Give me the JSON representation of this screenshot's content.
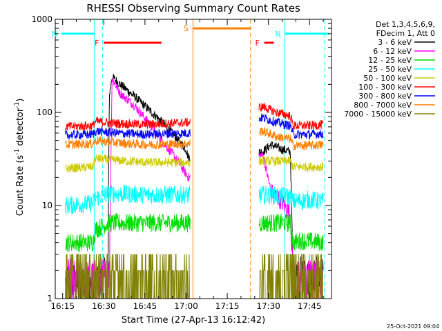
{
  "chart_data": {
    "type": "line",
    "title": "RHESSI Observing Summary Count Rates",
    "xlabel": "Start Time (27-Apr-13 16:12:42)",
    "ylabel_base": "Count Rate (s",
    "ylabel_sup1": "-1",
    "ylabel_mid": " detector",
    "ylabel_sup2": "-1",
    "ylabel_end": ")",
    "y_scale": "log",
    "ylim": [
      1,
      1000
    ],
    "xlim_minutes": [
      -2.7,
      98
    ],
    "x_ticks": [
      {
        "m": 0,
        "label": "16:15"
      },
      {
        "m": 15,
        "label": "16:30"
      },
      {
        "m": 30,
        "label": "16:45"
      },
      {
        "m": 45,
        "label": "17:00"
      },
      {
        "m": 60,
        "label": "17:15"
      },
      {
        "m": 75,
        "label": "17:30"
      },
      {
        "m": 90,
        "label": "17:45"
      }
    ],
    "y_ticks": [
      {
        "v": 1,
        "label": "1"
      },
      {
        "v": 10,
        "label": "10"
      },
      {
        "v": 100,
        "label": "100"
      },
      {
        "v": 1000,
        "label": "1000"
      }
    ],
    "legend_header": [
      "Det 1,3,4,5,6,9,",
      "FDecim 1, Att 0"
    ],
    "timestamp": "25-Oct-2021 09:04",
    "data_gap_minutes": [
      46.5,
      71.5
    ],
    "series": [
      {
        "name": "3 - 6 keV",
        "color": "#000000",
        "points": [
          [
            1,
            1.4
          ],
          [
            11,
            1.4
          ],
          [
            16.5,
            1.6
          ],
          [
            17,
            150
          ],
          [
            18,
            240
          ],
          [
            21,
            200
          ],
          [
            26,
            150
          ],
          [
            31,
            110
          ],
          [
            36,
            80
          ],
          [
            41,
            55
          ],
          [
            45,
            40
          ],
          [
            45.8,
            33
          ],
          [
            73,
            38
          ],
          [
            76,
            45
          ],
          [
            80,
            40
          ],
          [
            83,
            38
          ],
          [
            84,
            1.7
          ],
          [
            88,
            1.6
          ],
          [
            95,
            1.6
          ]
        ]
      },
      {
        "name": "6 - 12 keV",
        "color": "#ff00ff",
        "points": [
          [
            1,
            1.5
          ],
          [
            11,
            1.5
          ],
          [
            17,
            1.7
          ],
          [
            18,
            230
          ],
          [
            21,
            160
          ],
          [
            26,
            120
          ],
          [
            31,
            80
          ],
          [
            36,
            50
          ],
          [
            41,
            33
          ],
          [
            45.8,
            20
          ],
          [
            73,
            35
          ],
          [
            76,
            14
          ],
          [
            80,
            11
          ],
          [
            83,
            8
          ],
          [
            84,
            1.5
          ],
          [
            88,
            1.5
          ],
          [
            95,
            1.5
          ]
        ]
      },
      {
        "name": "12 - 25 keV",
        "color": "#00dd00",
        "points": [
          [
            1,
            4
          ],
          [
            11,
            4
          ],
          [
            12,
            5.5
          ],
          [
            17,
            6.5
          ],
          [
            25,
            6.5
          ],
          [
            35,
            6.5
          ],
          [
            45.8,
            6.5
          ],
          [
            73,
            6.5
          ],
          [
            83,
            6.5
          ],
          [
            84,
            4
          ],
          [
            88,
            4.2
          ],
          [
            95,
            4
          ]
        ]
      },
      {
        "name": "25 - 50 keV",
        "color": "#00ffff",
        "points": [
          [
            1,
            10
          ],
          [
            11,
            10.5
          ],
          [
            12,
            12
          ],
          [
            17,
            13.5
          ],
          [
            30,
            13
          ],
          [
            45.8,
            13
          ],
          [
            73,
            13
          ],
          [
            83,
            12.5
          ],
          [
            84,
            11
          ],
          [
            90,
            11.5
          ],
          [
            95,
            11
          ]
        ]
      },
      {
        "name": "50 - 100 keV",
        "color": "#cccc00",
        "points": [
          [
            1,
            25
          ],
          [
            11,
            26
          ],
          [
            12,
            32
          ],
          [
            17,
            31
          ],
          [
            30,
            29
          ],
          [
            45.8,
            29
          ],
          [
            73,
            30
          ],
          [
            83,
            30
          ],
          [
            84,
            26
          ],
          [
            90,
            26
          ],
          [
            95,
            26
          ]
        ]
      },
      {
        "name": "100 - 300 keV",
        "color": "#ff0000",
        "points": [
          [
            1,
            70
          ],
          [
            11,
            72
          ],
          [
            12,
            80
          ],
          [
            20,
            76
          ],
          [
            30,
            74
          ],
          [
            45.8,
            78
          ],
          [
            73,
            115
          ],
          [
            78,
            100
          ],
          [
            83,
            92
          ],
          [
            84,
            72
          ],
          [
            90,
            72
          ],
          [
            95,
            74
          ]
        ]
      },
      {
        "name": "300 - 800 keV",
        "color": "#0000ff",
        "points": [
          [
            1,
            57
          ],
          [
            11,
            58
          ],
          [
            12,
            63
          ],
          [
            20,
            60
          ],
          [
            30,
            58
          ],
          [
            45.8,
            60
          ],
          [
            73,
            88
          ],
          [
            78,
            78
          ],
          [
            83,
            72
          ],
          [
            84,
            58
          ],
          [
            90,
            58
          ],
          [
            95,
            59
          ]
        ]
      },
      {
        "name": "800 - 7000 keV",
        "color": "#ff7f00",
        "points": [
          [
            1,
            45
          ],
          [
            11,
            46
          ],
          [
            12,
            50
          ],
          [
            20,
            47
          ],
          [
            30,
            45
          ],
          [
            45.8,
            46
          ],
          [
            73,
            63
          ],
          [
            78,
            55
          ],
          [
            83,
            52
          ],
          [
            84,
            44
          ],
          [
            90,
            44
          ],
          [
            95,
            45
          ]
        ]
      },
      {
        "name": "7000 - 15000 keV",
        "color": "#808000",
        "points": [
          [
            1,
            2
          ],
          [
            11,
            2
          ],
          [
            12,
            2
          ],
          [
            45.8,
            2
          ],
          [
            73,
            2
          ],
          [
            95,
            2
          ]
        ]
      }
    ],
    "flags": [
      {
        "label": "N",
        "color": "#00ffff",
        "start": -0.5,
        "end": 11.5,
        "level": 700,
        "line": "solid"
      },
      {
        "label": "N",
        "color": "#00ffff",
        "start": 81,
        "end": 97,
        "level": 700,
        "line": "solid"
      },
      {
        "label": "F",
        "color": "#ff0000",
        "start": 15,
        "end": 36,
        "level": 560,
        "line": "solid"
      },
      {
        "label": "F",
        "color": "#ff0000",
        "start": 73.5,
        "end": 77,
        "level": 560,
        "line": "solid"
      },
      {
        "label": "S",
        "color": "#ff7f00",
        "start": 47.5,
        "end": 68.5,
        "level": 800,
        "line": "solid"
      }
    ],
    "vlines": [
      {
        "m": 11.5,
        "color": "#00ffff",
        "dash": false
      },
      {
        "m": 14.5,
        "color": "#00ffff",
        "dash": true
      },
      {
        "m": 47.5,
        "color": "#ff7f00",
        "dash": false
      },
      {
        "m": 68.5,
        "color": "#ff7f00",
        "dash": true
      },
      {
        "m": 81,
        "color": "#00ffff",
        "dash": false
      },
      {
        "m": 95.5,
        "color": "#00ffff",
        "dash": true
      }
    ]
  }
}
